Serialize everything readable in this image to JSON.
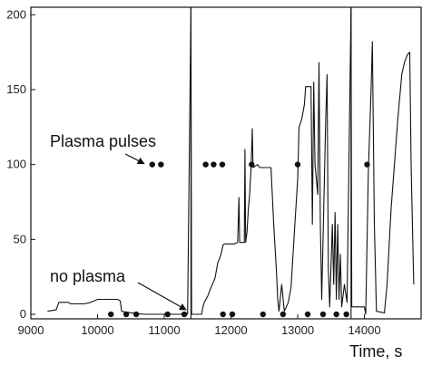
{
  "chart_data": {
    "type": "line",
    "title": "",
    "xlabel": "Time, s",
    "ylabel": "",
    "xlim": [
      9000,
      14850
    ],
    "ylim": [
      -3,
      205
    ],
    "x_ticks": [
      9000,
      10000,
      11000,
      12000,
      13000,
      14000
    ],
    "y_ticks": [
      0,
      50,
      100,
      150,
      200
    ],
    "grid": false,
    "line_color": "#111111",
    "dot_color": "#111111",
    "annotations": [
      {
        "text": "Plasma pulses",
        "target": [
          10780,
          100
        ]
      },
      {
        "text": "no plasma",
        "target": [
          11380,
          0
        ]
      }
    ],
    "vertical_lines": [
      11400,
      13800
    ],
    "series": [
      {
        "points": [
          [
            9250,
            2
          ],
          [
            9380,
            3
          ],
          [
            9420,
            8
          ],
          [
            9560,
            8
          ],
          [
            9600,
            7
          ],
          [
            9800,
            7
          ],
          [
            9900,
            8
          ],
          [
            10000,
            10
          ],
          [
            10300,
            10
          ],
          [
            10340,
            9
          ],
          [
            10360,
            2
          ],
          [
            10500,
            1
          ],
          [
            10700,
            0
          ],
          [
            11000,
            0
          ],
          [
            11350,
            0
          ],
          [
            11400,
            205
          ],
          [
            11410,
            0
          ],
          [
            11500,
            0
          ],
          [
            11560,
            0
          ],
          [
            11580,
            5
          ],
          [
            11600,
            8
          ],
          [
            11650,
            12
          ],
          [
            11700,
            18
          ],
          [
            11760,
            24
          ],
          [
            11800,
            34
          ],
          [
            11850,
            40
          ],
          [
            11880,
            46
          ],
          [
            11900,
            47
          ],
          [
            12050,
            47
          ],
          [
            12100,
            48
          ],
          [
            12120,
            78
          ],
          [
            12130,
            48
          ],
          [
            12200,
            48
          ],
          [
            12210,
            110
          ],
          [
            12220,
            48
          ],
          [
            12240,
            55
          ],
          [
            12260,
            70
          ],
          [
            12280,
            80
          ],
          [
            12300,
            97
          ],
          [
            12320,
            124
          ],
          [
            12330,
            98
          ],
          [
            12400,
            100
          ],
          [
            12430,
            98
          ],
          [
            12600,
            98
          ],
          [
            12640,
            60
          ],
          [
            12680,
            30
          ],
          [
            12700,
            10
          ],
          [
            12720,
            2
          ],
          [
            12760,
            20
          ],
          [
            12800,
            2
          ],
          [
            12860,
            8
          ],
          [
            12900,
            18
          ],
          [
            12930,
            40
          ],
          [
            12960,
            62
          ],
          [
            13000,
            90
          ],
          [
            13020,
            125
          ],
          [
            13060,
            130
          ],
          [
            13100,
            140
          ],
          [
            13120,
            152
          ],
          [
            13200,
            152
          ],
          [
            13220,
            60
          ],
          [
            13240,
            155
          ],
          [
            13260,
            100
          ],
          [
            13300,
            80
          ],
          [
            13320,
            168
          ],
          [
            13340,
            60
          ],
          [
            13360,
            10
          ],
          [
            13390,
            70
          ],
          [
            13420,
            130
          ],
          [
            13440,
            160
          ],
          [
            13460,
            30
          ],
          [
            13480,
            5
          ],
          [
            13520,
            60
          ],
          [
            13540,
            20
          ],
          [
            13560,
            68
          ],
          [
            13580,
            10
          ],
          [
            13600,
            60
          ],
          [
            13620,
            10
          ],
          [
            13640,
            40
          ],
          [
            13660,
            5
          ],
          [
            13700,
            20
          ],
          [
            13740,
            8
          ],
          [
            13800,
            205
          ],
          [
            13810,
            5
          ],
          [
            14000,
            5
          ],
          [
            14020,
            0
          ],
          [
            14060,
            96
          ],
          [
            14100,
            150
          ],
          [
            14120,
            182
          ],
          [
            14150,
            60
          ],
          [
            14180,
            2
          ],
          [
            14300,
            1
          ],
          [
            14340,
            20
          ],
          [
            14400,
            70
          ],
          [
            14450,
            100
          ],
          [
            14500,
            130
          ],
          [
            14560,
            160
          ],
          [
            14600,
            168
          ],
          [
            14640,
            173
          ],
          [
            14680,
            175
          ],
          [
            14700,
            100
          ],
          [
            14740,
            20
          ]
        ]
      }
    ],
    "pulse_dots_100": [
      10820,
      10950,
      11620,
      11740,
      11870,
      12310,
      13000,
      14040
    ],
    "pulse_dots_0": [
      10200,
      10430,
      10580,
      11050,
      11300,
      11880,
      12020,
      12480,
      12780,
      13150,
      13380,
      13580,
      13730
    ]
  }
}
